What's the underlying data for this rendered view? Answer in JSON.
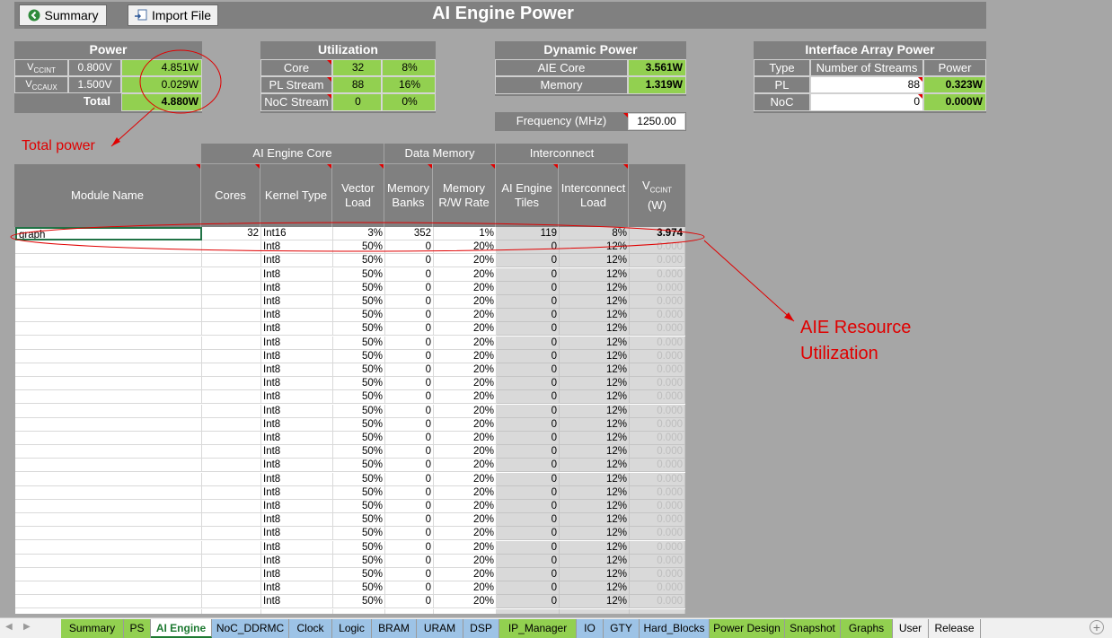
{
  "header": {
    "title": "AI Engine Power",
    "summary_label": "Summary",
    "import_label": "Import File"
  },
  "power_panel": {
    "title": "Power",
    "rows": [
      {
        "label_main": "V",
        "label_sub": "CCINT",
        "voltage": "0.800V",
        "watts": "4.851W"
      },
      {
        "label_main": "V",
        "label_sub": "CCAUX",
        "voltage": "1.500V",
        "watts": "0.029W"
      }
    ],
    "total_label": "Total",
    "total_value": "4.880W"
  },
  "utilization": {
    "title": "Utilization",
    "rows": [
      {
        "label": "Core",
        "count": "32",
        "pct": "8%"
      },
      {
        "label": "PL Stream",
        "count": "88",
        "pct": "16%"
      },
      {
        "label": "NoC Stream",
        "count": "0",
        "pct": "0%"
      }
    ]
  },
  "dynamic_power": {
    "title": "Dynamic Power",
    "rows": [
      {
        "label": "AIE Core",
        "value": "3.561W"
      },
      {
        "label": "Memory",
        "value": "1.319W"
      }
    ],
    "freq_label": "Frequency (MHz)",
    "freq_value": "1250.00"
  },
  "interface_array": {
    "title": "Interface Array Power",
    "headers": [
      "Type",
      "Number of Streams",
      "Power"
    ],
    "rows": [
      {
        "type": "PL",
        "streams": "88",
        "power": "0.323W"
      },
      {
        "type": "NoC",
        "streams": "0",
        "power": "0.000W"
      }
    ]
  },
  "table": {
    "group_headers": {
      "core": "AI Engine Core",
      "memory": "Data Memory",
      "interconnect": "Interconnect"
    },
    "columns": {
      "module": "Module Name",
      "cores": "Cores",
      "kernel": "Kernel Type",
      "vector": [
        "Vector",
        "Load"
      ],
      "banks": [
        "Memory",
        "Banks"
      ],
      "rw": [
        "Memory",
        "R/W Rate"
      ],
      "tiles": [
        "AI Engine",
        "Tiles"
      ],
      "ic_load": [
        "Interconnect",
        "Load"
      ],
      "vccint_main": "V",
      "vccint_sub": "CCINT",
      "vccint_unit": "(W)"
    },
    "first_row": {
      "module": "graph",
      "cores": "32",
      "kernel": "Int16",
      "vector": "3%",
      "banks": "352",
      "rw": "1%",
      "tiles": "119",
      "ic_load": "8%",
      "power": "3.974"
    },
    "default_row": {
      "kernel": "Int8",
      "vector": "50%",
      "banks": "0",
      "rw": "20%",
      "tiles": "0",
      "ic_load": "12%",
      "power": "0.000"
    },
    "default_row_count": 27
  },
  "annotations": {
    "total_power": "Total power",
    "aie_line1": "AIE Resource",
    "aie_line2": "Utilization"
  },
  "sheet_tabs": [
    {
      "label": "Summary",
      "color": "g"
    },
    {
      "label": "PS",
      "color": "g"
    },
    {
      "label": "AI Engine",
      "color": "active"
    },
    {
      "label": "NoC_DDRMC",
      "color": "b"
    },
    {
      "label": "Clock",
      "color": "b"
    },
    {
      "label": "Logic",
      "color": "b"
    },
    {
      "label": "BRAM",
      "color": "b"
    },
    {
      "label": "URAM",
      "color": "b"
    },
    {
      "label": "DSP",
      "color": "b"
    },
    {
      "label": "IP_Manager",
      "color": "g"
    },
    {
      "label": "IO",
      "color": "b"
    },
    {
      "label": "GTY",
      "color": "b"
    },
    {
      "label": "Hard_Blocks",
      "color": "b"
    },
    {
      "label": "Power Design",
      "color": "g"
    },
    {
      "label": "Snapshot",
      "color": "g"
    },
    {
      "label": "Graphs",
      "color": "g"
    },
    {
      "label": "User",
      "color": "w"
    },
    {
      "label": "Release",
      "color": "w"
    }
  ]
}
